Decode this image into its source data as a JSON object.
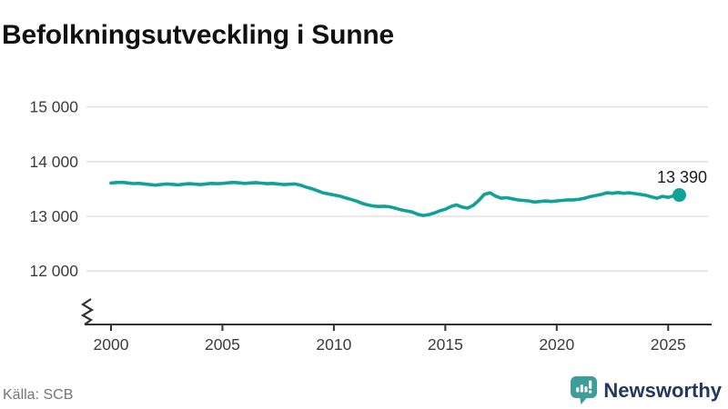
{
  "header": {
    "title": "Befolkningsutveckling i Sunne"
  },
  "chart_data": {
    "type": "line",
    "title": "Befolkningsutveckling i Sunne",
    "xlabel": "",
    "ylabel": "",
    "x_ticks": [
      2000,
      2005,
      2010,
      2015,
      2020,
      2025
    ],
    "y_ticks": [
      {
        "value": 15000,
        "label": "15 000"
      },
      {
        "value": 14000,
        "label": "14 000"
      },
      {
        "value": 13000,
        "label": "13 000"
      },
      {
        "value": 12000,
        "label": "12 000"
      }
    ],
    "xlim": [
      2000,
      2025.5
    ],
    "ylim": [
      12000,
      15000
    ],
    "axis_break_bottom": true,
    "grid": "horizontal",
    "legend": "none",
    "end_label": "13 390",
    "last_value": 13390,
    "series": [
      {
        "name": "Befolkning i Sunne",
        "color": "#10a197",
        "points": [
          [
            2000.0,
            13608
          ],
          [
            2000.25,
            13618
          ],
          [
            2000.5,
            13622
          ],
          [
            2000.75,
            13610
          ],
          [
            2001.0,
            13598
          ],
          [
            2001.25,
            13603
          ],
          [
            2001.5,
            13592
          ],
          [
            2001.75,
            13580
          ],
          [
            2002.0,
            13570
          ],
          [
            2002.25,
            13582
          ],
          [
            2002.5,
            13592
          ],
          [
            2002.75,
            13584
          ],
          [
            2003.0,
            13574
          ],
          [
            2003.25,
            13586
          ],
          [
            2003.5,
            13596
          ],
          [
            2003.75,
            13588
          ],
          [
            2004.0,
            13580
          ],
          [
            2004.25,
            13592
          ],
          [
            2004.5,
            13602
          ],
          [
            2004.75,
            13596
          ],
          [
            2005.0,
            13602
          ],
          [
            2005.25,
            13612
          ],
          [
            2005.5,
            13620
          ],
          [
            2005.75,
            13612
          ],
          [
            2006.0,
            13602
          ],
          [
            2006.25,
            13610
          ],
          [
            2006.5,
            13616
          ],
          [
            2006.75,
            13606
          ],
          [
            2007.0,
            13596
          ],
          [
            2007.25,
            13602
          ],
          [
            2007.5,
            13592
          ],
          [
            2007.75,
            13580
          ],
          [
            2008.0,
            13586
          ],
          [
            2008.25,
            13592
          ],
          [
            2008.5,
            13570
          ],
          [
            2008.75,
            13535
          ],
          [
            2009.0,
            13505
          ],
          [
            2009.25,
            13470
          ],
          [
            2009.5,
            13430
          ],
          [
            2009.75,
            13410
          ],
          [
            2010.0,
            13390
          ],
          [
            2010.25,
            13370
          ],
          [
            2010.5,
            13340
          ],
          [
            2010.75,
            13310
          ],
          [
            2011.0,
            13280
          ],
          [
            2011.25,
            13240
          ],
          [
            2011.5,
            13210
          ],
          [
            2011.75,
            13190
          ],
          [
            2012.0,
            13180
          ],
          [
            2012.25,
            13185
          ],
          [
            2012.5,
            13175
          ],
          [
            2012.75,
            13150
          ],
          [
            2013.0,
            13120
          ],
          [
            2013.25,
            13100
          ],
          [
            2013.5,
            13080
          ],
          [
            2013.75,
            13040
          ],
          [
            2014.0,
            13015
          ],
          [
            2014.25,
            13030
          ],
          [
            2014.5,
            13060
          ],
          [
            2014.75,
            13100
          ],
          [
            2015.0,
            13130
          ],
          [
            2015.25,
            13180
          ],
          [
            2015.5,
            13210
          ],
          [
            2015.75,
            13170
          ],
          [
            2016.0,
            13150
          ],
          [
            2016.25,
            13200
          ],
          [
            2016.5,
            13290
          ],
          [
            2016.75,
            13400
          ],
          [
            2017.0,
            13430
          ],
          [
            2017.25,
            13370
          ],
          [
            2017.5,
            13330
          ],
          [
            2017.75,
            13340
          ],
          [
            2018.0,
            13320
          ],
          [
            2018.25,
            13300
          ],
          [
            2018.5,
            13290
          ],
          [
            2018.75,
            13280
          ],
          [
            2019.0,
            13260
          ],
          [
            2019.25,
            13270
          ],
          [
            2019.5,
            13280
          ],
          [
            2019.75,
            13270
          ],
          [
            2020.0,
            13280
          ],
          [
            2020.25,
            13290
          ],
          [
            2020.5,
            13300
          ],
          [
            2020.75,
            13300
          ],
          [
            2021.0,
            13310
          ],
          [
            2021.25,
            13330
          ],
          [
            2021.5,
            13360
          ],
          [
            2021.75,
            13380
          ],
          [
            2022.0,
            13400
          ],
          [
            2022.25,
            13430
          ],
          [
            2022.5,
            13420
          ],
          [
            2022.75,
            13435
          ],
          [
            2023.0,
            13420
          ],
          [
            2023.25,
            13430
          ],
          [
            2023.5,
            13415
          ],
          [
            2023.75,
            13400
          ],
          [
            2024.0,
            13385
          ],
          [
            2024.25,
            13355
          ],
          [
            2024.5,
            13330
          ],
          [
            2024.75,
            13365
          ],
          [
            2025.0,
            13345
          ],
          [
            2025.25,
            13375
          ],
          [
            2025.5,
            13390
          ]
        ]
      }
    ]
  },
  "colors": {
    "line": "#10a197",
    "grid": "#e2e2e2",
    "axis": "#333333",
    "tick_text": "#3c3c3c",
    "value_label_text": "#1c1c1c",
    "title_text": "#111111",
    "source_text": "#757575",
    "brand_text": "#24375d",
    "brand_icon": "#3d9e98"
  },
  "footer": {
    "source": "Källa: SCB",
    "brand": "Newsworthy"
  }
}
